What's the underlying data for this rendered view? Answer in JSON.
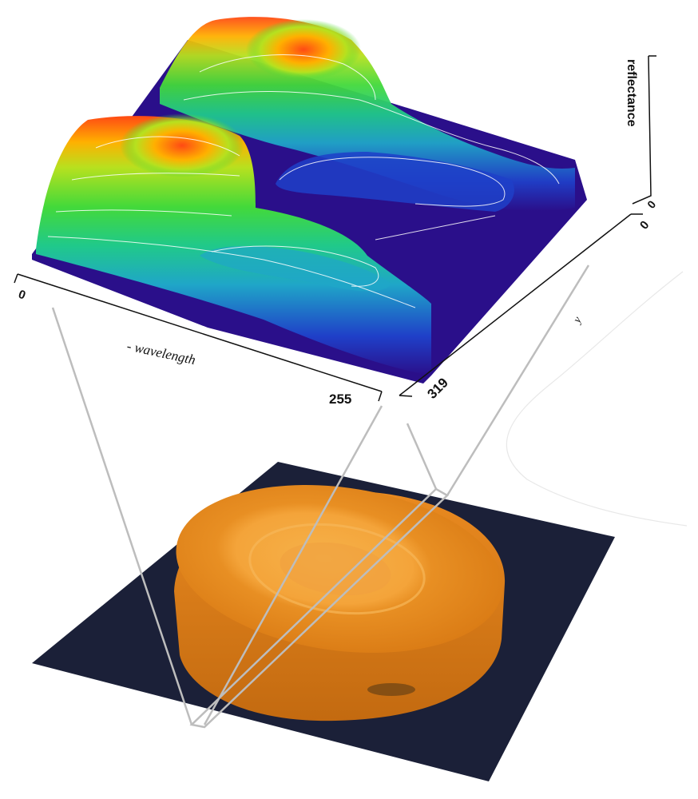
{
  "figure": {
    "surface_plot": {
      "z_axis_label": "reflectance",
      "z_axis_tick": "0",
      "x_axis_label": "- wavelength",
      "x_axis_ticks": [
        "0",
        "255"
      ],
      "y_axis_label": "y",
      "y_axis_ticks": [
        "0",
        "319"
      ],
      "colormap": [
        "#2a0f8a",
        "#1f3fc8",
        "#1fa6c8",
        "#20c98a",
        "#43d93a",
        "#b6e11f",
        "#ffb000",
        "#ff4a14"
      ]
    },
    "photo": {
      "subject": "carrot-slice-on-dark-background",
      "background_color": "#1b2038",
      "slice_color": "#f2a33a"
    }
  }
}
